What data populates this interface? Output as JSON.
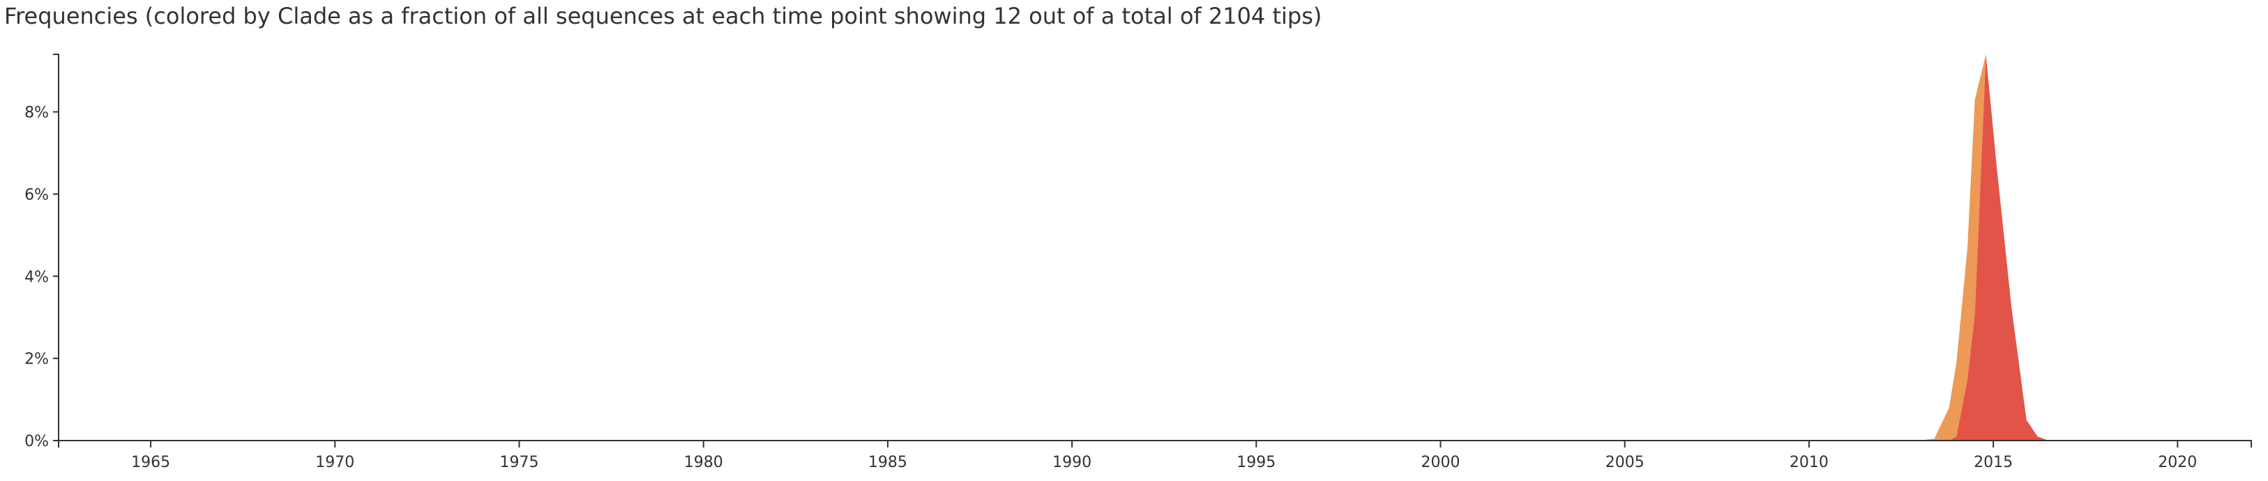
{
  "panel": {
    "title": "Frequencies (colored by Clade as a fraction of all sequences at each time point showing 12 out of a total of 2104 tips)"
  },
  "chart_data": {
    "type": "area",
    "stacked": true,
    "title": "Frequencies (colored by Clade as a fraction of all sequences at each time point showing 12 out of a total of 2104 tips)",
    "xlabel": "",
    "ylabel": "",
    "xlim": [
      1962.5,
      2022.0
    ],
    "ylim": [
      0,
      9.4
    ],
    "x_ticks": [
      1965,
      1970,
      1975,
      1980,
      1985,
      1990,
      1995,
      2000,
      2005,
      2010,
      2015,
      2020
    ],
    "y_ticks": [
      0,
      2,
      4,
      6,
      8
    ],
    "y_tick_format": "%",
    "grid": false,
    "legend": "none",
    "x": [
      2013.0,
      2013.4,
      2013.8,
      2014.0,
      2014.3,
      2014.5,
      2014.8,
      2015.1,
      2015.5,
      2015.9,
      2016.2,
      2016.5
    ],
    "series": [
      {
        "color": "#e35448",
        "values": [
          0,
          0,
          0,
          0.1,
          1.5,
          3.1,
          9.4,
          6.6,
          3.2,
          0.5,
          0.1,
          0
        ]
      },
      {
        "color": "#ec9a55",
        "values": [
          0,
          0.05,
          0.8,
          1.8,
          3.2,
          5.2,
          0,
          0,
          0,
          0,
          0,
          0
        ]
      }
    ]
  }
}
